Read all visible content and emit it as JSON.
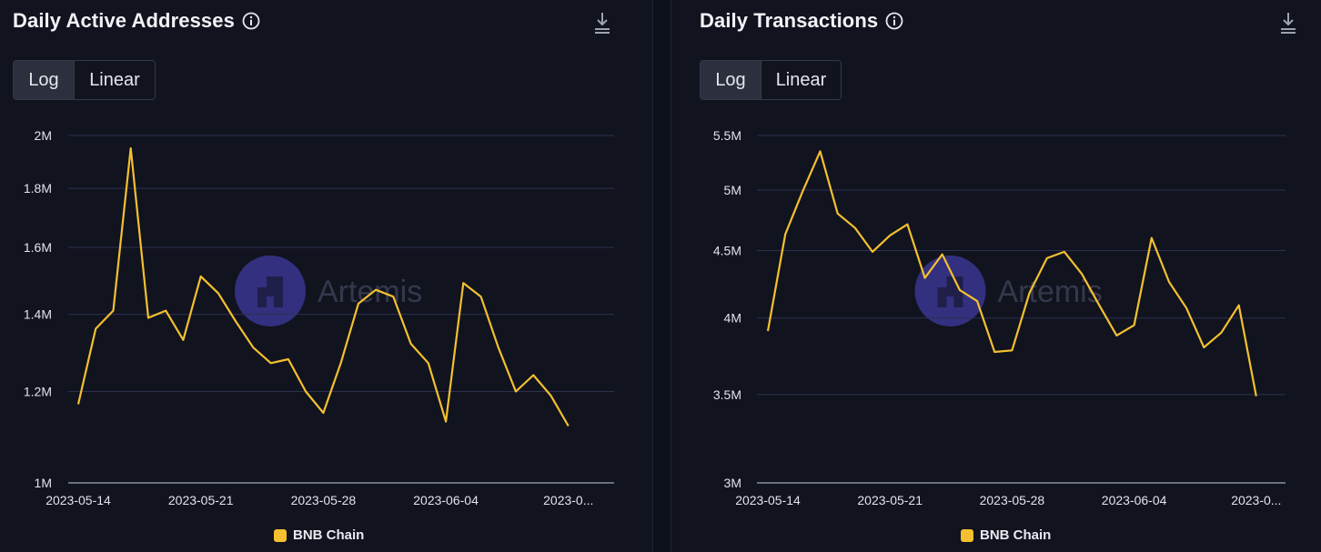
{
  "watermark": "Artemis",
  "colors": {
    "series": "#f4c02f",
    "watermark": "#3a3690"
  },
  "toggle": {
    "log_label": "Log",
    "linear_label": "Linear",
    "selected": "Log"
  },
  "charts": [
    {
      "title": "Daily Active Addresses",
      "info_icon": "info-icon",
      "download_icon": "download-icon",
      "legend": "BNB Chain"
    },
    {
      "title": "Daily Transactions",
      "info_icon": "info-icon",
      "download_icon": "download-icon",
      "legend": "BNB Chain"
    }
  ],
  "chart_data": [
    {
      "type": "line",
      "title": "Daily Active Addresses",
      "yscale": "log",
      "ylim": [
        1000000,
        2000000
      ],
      "yticks": [
        1000000,
        1200000,
        1400000,
        1600000,
        1800000,
        2000000
      ],
      "ytick_labels": [
        "1M",
        "1.2M",
        "1.4M",
        "1.6M",
        "1.8M",
        "2M"
      ],
      "x": [
        "2023-05-14",
        "2023-05-15",
        "2023-05-16",
        "2023-05-17",
        "2023-05-18",
        "2023-05-19",
        "2023-05-20",
        "2023-05-21",
        "2023-05-22",
        "2023-05-23",
        "2023-05-24",
        "2023-05-25",
        "2023-05-26",
        "2023-05-27",
        "2023-05-28",
        "2023-05-29",
        "2023-05-30",
        "2023-05-31",
        "2023-06-01",
        "2023-06-02",
        "2023-06-03",
        "2023-06-04",
        "2023-06-05",
        "2023-06-06",
        "2023-06-07",
        "2023-06-08",
        "2023-06-09",
        "2023-06-10",
        "2023-06-11",
        "2023-06-12"
      ],
      "xtick_labels": [
        "2023-05-14",
        "2023-05-21",
        "2023-05-28",
        "2023-06-04",
        "2023-0..."
      ],
      "xtick_index": [
        0,
        7,
        14,
        21,
        28
      ],
      "series": [
        {
          "name": "BNB Chain",
          "values": [
            1170000,
            1360000,
            1410000,
            1950000,
            1390000,
            1410000,
            1330000,
            1510000,
            1460000,
            1380000,
            1310000,
            1270000,
            1280000,
            1200000,
            1150000,
            1270000,
            1430000,
            1470000,
            1450000,
            1320000,
            1270000,
            1130000,
            1490000,
            1450000,
            1310000,
            1200000,
            1240000,
            1190000,
            1120000,
            1120000
          ]
        }
      ],
      "legend": "BNB Chain"
    },
    {
      "type": "line",
      "title": "Daily Transactions",
      "yscale": "log",
      "ylim": [
        3000000,
        5500000
      ],
      "yticks": [
        3000000,
        3500000,
        4000000,
        4500000,
        5000000,
        5500000
      ],
      "ytick_labels": [
        "3M",
        "3.5M",
        "4M",
        "4.5M",
        "5M",
        "5.5M"
      ],
      "x": [
        "2023-05-14",
        "2023-05-15",
        "2023-05-16",
        "2023-05-17",
        "2023-05-18",
        "2023-05-19",
        "2023-05-20",
        "2023-05-21",
        "2023-05-22",
        "2023-05-23",
        "2023-05-24",
        "2023-05-25",
        "2023-05-26",
        "2023-05-27",
        "2023-05-28",
        "2023-05-29",
        "2023-05-30",
        "2023-05-31",
        "2023-06-01",
        "2023-06-02",
        "2023-06-03",
        "2023-06-04",
        "2023-06-05",
        "2023-06-06",
        "2023-06-07",
        "2023-06-08",
        "2023-06-09",
        "2023-06-10",
        "2023-06-11",
        "2023-06-12"
      ],
      "xtick_labels": [
        "2023-05-14",
        "2023-05-21",
        "2023-05-28",
        "2023-06-04",
        "2023-0..."
      ],
      "xtick_index": [
        0,
        7,
        14,
        21,
        28
      ],
      "series": [
        {
          "name": "BNB Chain",
          "values": [
            3910000,
            4630000,
            4990000,
            5350000,
            4800000,
            4680000,
            4490000,
            4620000,
            4710000,
            4290000,
            4470000,
            4200000,
            4120000,
            3770000,
            3780000,
            4180000,
            4440000,
            4490000,
            4320000,
            4090000,
            3880000,
            3950000,
            4600000,
            4260000,
            4070000,
            3800000,
            3900000,
            4090000,
            3490000,
            3490000
          ]
        }
      ],
      "legend": "BNB Chain"
    }
  ]
}
